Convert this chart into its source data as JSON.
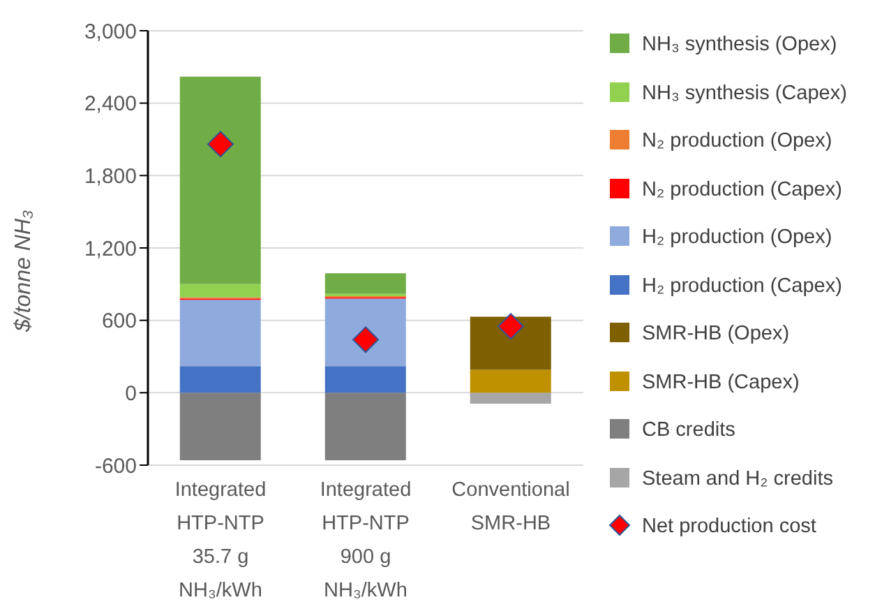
{
  "chart_data": {
    "type": "bar",
    "stacked": true,
    "ylabel": "$/tonne NH₃",
    "categories": [
      "Integrated\nHTP-NTP\n35.7 g\nNH₃/kWh",
      "Integrated\nHTP-NTP\n900 g\nNH₃/kWh",
      "Conventional\nSMR-HB"
    ],
    "series": [
      {
        "name": "Steam and H₂ credits",
        "color": "#a6a6a6",
        "values": [
          null,
          null,
          -90
        ]
      },
      {
        "name": "CB credits",
        "color": "#7f7f7f",
        "values": [
          -560,
          -560,
          null
        ]
      },
      {
        "name": "SMR-HB (Capex)",
        "color": "#bf9000",
        "values": [
          null,
          null,
          190
        ]
      },
      {
        "name": "SMR-HB (Opex)",
        "color": "#7f6000",
        "values": [
          null,
          null,
          440
        ]
      },
      {
        "name": "H₂ production (Capex)",
        "color": "#4472c4",
        "values": [
          220,
          220,
          null
        ]
      },
      {
        "name": "H₂ production (Opex)",
        "color": "#8faadc",
        "values": [
          550,
          560,
          null
        ]
      },
      {
        "name": "N₂ production (Capex)",
        "color": "#ff0000",
        "values": [
          10,
          10,
          null
        ]
      },
      {
        "name": "N₂ production (Opex)",
        "color": "#ed7d31",
        "values": [
          10,
          10,
          null
        ]
      },
      {
        "name": "NH₃ synthesis (Capex)",
        "color": "#92d050",
        "values": [
          110,
          20,
          null
        ]
      },
      {
        "name": "NH₃ synthesis (Opex)",
        "color": "#70ad47",
        "values": [
          1720,
          170,
          null
        ]
      },
      {
        "name": "Net production cost",
        "type": "scatter",
        "marker": "diamond",
        "color": "#ff0000",
        "values": [
          2060,
          440,
          550
        ]
      }
    ],
    "ylim": [
      -600,
      3000
    ],
    "yticks": [
      {
        "value": -600,
        "label": "-600"
      },
      0,
      600,
      {
        "value": 1200,
        "label": "1,200"
      },
      {
        "value": 1800,
        "label": "1,800"
      },
      {
        "value": 2400,
        "label": "2,400"
      },
      {
        "value": 3000,
        "label": "3,000"
      }
    ],
    "grid": "y",
    "legend": "right"
  }
}
